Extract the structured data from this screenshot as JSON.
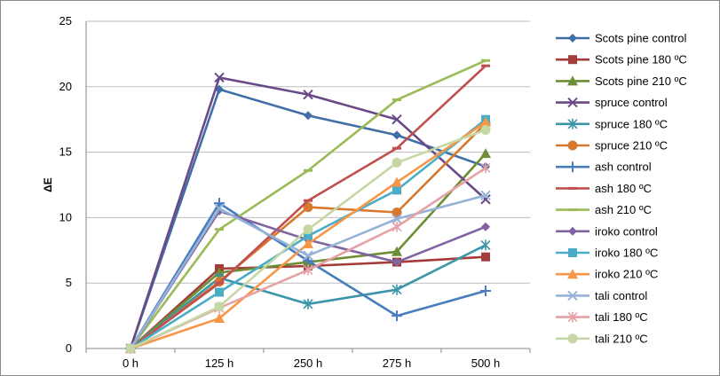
{
  "chart_data": {
    "type": "line",
    "title": "",
    "xlabel": "",
    "ylabel": "ΔE",
    "categories": [
      "0 h",
      "125 h",
      "250 h",
      "275 h",
      "500 h"
    ],
    "ylim": [
      0,
      25
    ],
    "yticks": [
      0,
      5,
      10,
      15,
      20,
      25
    ],
    "grid": "horizontal",
    "legend_position": "right",
    "series": [
      {
        "name": "Scots pine control",
        "color": "#3f6fa6",
        "marker": "diamond",
        "values": [
          0,
          19.8,
          17.8,
          16.3,
          13.9
        ]
      },
      {
        "name": "Scots pine 180  ºC",
        "color": "#a33c3a",
        "marker": "square",
        "values": [
          0,
          6.1,
          6.3,
          6.6,
          7.0
        ]
      },
      {
        "name": "Scots pine 210  ºC",
        "color": "#6d8e35",
        "marker": "triangle",
        "values": [
          0,
          5.8,
          6.6,
          7.4,
          14.9
        ]
      },
      {
        "name": "spruce control",
        "color": "#6a4a86",
        "marker": "x",
        "values": [
          0,
          20.7,
          19.4,
          17.5,
          11.4
        ]
      },
      {
        "name": "spruce 180  ºC",
        "color": "#3a95a8",
        "marker": "asterisk",
        "values": [
          0,
          5.4,
          3.4,
          4.5,
          7.9
        ]
      },
      {
        "name": "spruce 210  ºC",
        "color": "#d7782f",
        "marker": "circle",
        "values": [
          0,
          5.1,
          10.8,
          10.4,
          17.2
        ]
      },
      {
        "name": "ash control",
        "color": "#4a7dbd",
        "marker": "plus",
        "values": [
          0,
          11.1,
          6.7,
          2.5,
          4.4
        ]
      },
      {
        "name": "ash 180  ºC",
        "color": "#c0504d",
        "marker": "dash",
        "values": [
          0,
          5.0,
          11.3,
          15.3,
          21.6
        ]
      },
      {
        "name": "ash 210  ºC",
        "color": "#9bbb59",
        "marker": "dash",
        "values": [
          0,
          9.1,
          13.6,
          19.0,
          22.0
        ]
      },
      {
        "name": "iroko control",
        "color": "#8064a2",
        "marker": "diamond",
        "values": [
          0,
          10.5,
          8.3,
          6.6,
          9.3
        ]
      },
      {
        "name": "iroko 180 ºC",
        "color": "#4bacc6",
        "marker": "square",
        "values": [
          0,
          4.3,
          8.6,
          12.1,
          17.5
        ]
      },
      {
        "name": "iroko 210 ºC",
        "color": "#f79646",
        "marker": "triangle",
        "values": [
          0,
          2.3,
          8.0,
          12.7,
          17.3
        ]
      },
      {
        "name": "tali control",
        "color": "#95b3d7",
        "marker": "x",
        "values": [
          0,
          10.7,
          7.1,
          9.9,
          11.7
        ]
      },
      {
        "name": "tali 180 ºC",
        "color": "#e6a1a5",
        "marker": "asterisk",
        "values": [
          0,
          3.1,
          6.0,
          9.3,
          13.8
        ]
      },
      {
        "name": "tali 210 ºC",
        "color": "#c4d7a4",
        "marker": "circle",
        "values": [
          0,
          3.2,
          9.1,
          14.2,
          16.7
        ]
      }
    ]
  }
}
